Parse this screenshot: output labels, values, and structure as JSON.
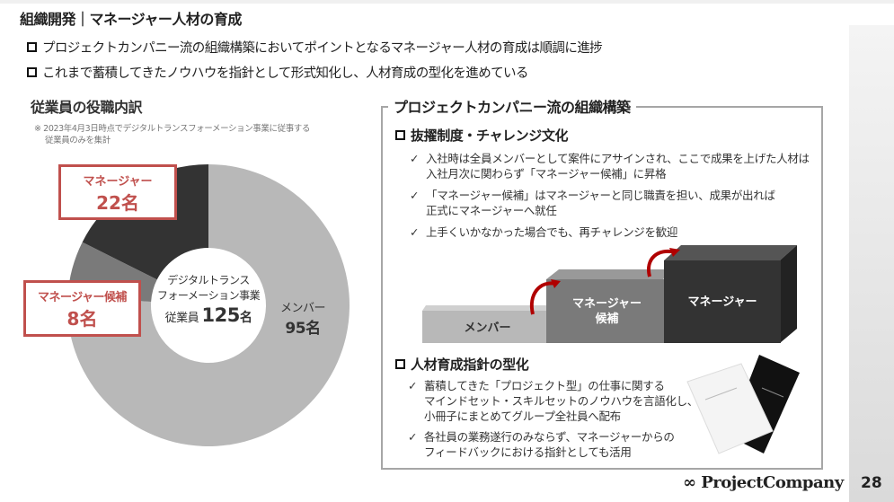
{
  "title": "組織開発｜マネージャー人材の育成",
  "bullets": [
    "プロジェクトカンパニー流の組織構築においてポイントとなるマネージャー人材の育成は順調に進捗",
    "これまで蓄積してきたノウハウを指針として形式知化し、人材育成の型化を進めている"
  ],
  "left": {
    "heading": "従業員の役職内訳",
    "note": [
      "※ 2023年4月3日時点でデジタルトランスフォーメーション事業に従事する",
      "従業員のみを集計"
    ]
  },
  "chart_data": {
    "type": "pie",
    "donut": true,
    "center_label": [
      "デジタルトランス",
      "フォーメーション事業"
    ],
    "total_label": "従業員",
    "total_value": "125",
    "unit": "名",
    "slices": [
      {
        "name": "メンバー",
        "value": 95,
        "label": "95名",
        "color": "#b8b8b8"
      },
      {
        "name": "マネージャー候補",
        "value": 8,
        "label": "8名",
        "color": "#7a7a7a"
      },
      {
        "name": "マネージャー",
        "value": 22,
        "label": "22名",
        "color": "#333333"
      }
    ]
  },
  "right": {
    "heading": "プロジェクトカンパニー流の組織構築",
    "s1": {
      "title": "抜擢制度・チャレンジ文化",
      "items": [
        [
          "入社時は全員メンバーとして案件にアサインされ、ここで成果を上げた人材は",
          "入社月次に関わらず「マネージャー候補」に昇格"
        ],
        [
          "「マネージャー候補」はマネージャーと同じ職責を担い、成果が出れば",
          "正式にマネージャーへ就任"
        ],
        [
          "上手くいかなかった場合でも、再チャレンジを歓迎"
        ]
      ]
    },
    "steps": [
      "メンバー",
      "マネージャー",
      "候補",
      "マネージャー"
    ],
    "s2": {
      "title": "人材育成指針の型化",
      "items": [
        [
          "蓄積してきた「プロジェクト型」の仕事に関する",
          "マインドセット・スキルセットのノウハウを言語化し、",
          "小冊子にまとめてグループ全社員へ配布"
        ],
        [
          "各社員の業務遂行のみならず、マネージャーからの",
          "フィードバックにおける指針としても活用"
        ]
      ]
    }
  },
  "check": "✓",
  "footer": {
    "logo": "∞ ProjectCompany",
    "page": "28"
  }
}
